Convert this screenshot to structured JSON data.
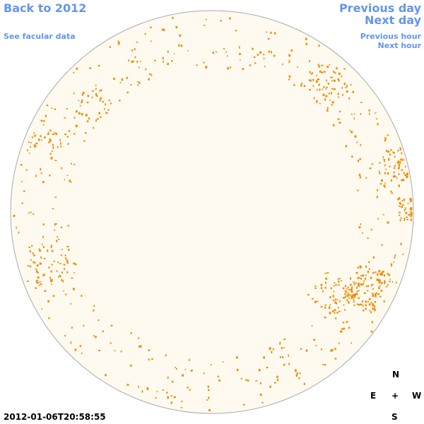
{
  "links": {
    "back": "Back to 2012",
    "facular": "See facular data",
    "previous_day": "Previous day",
    "next_day": "Next day",
    "previous_hour": "Previous hour",
    "next_hour": "Next hour"
  },
  "compass": {
    "north": "N",
    "east": "E",
    "center": "+",
    "west": "W",
    "south": "S"
  },
  "timestamp": "2012-01-06T20:58:55"
}
